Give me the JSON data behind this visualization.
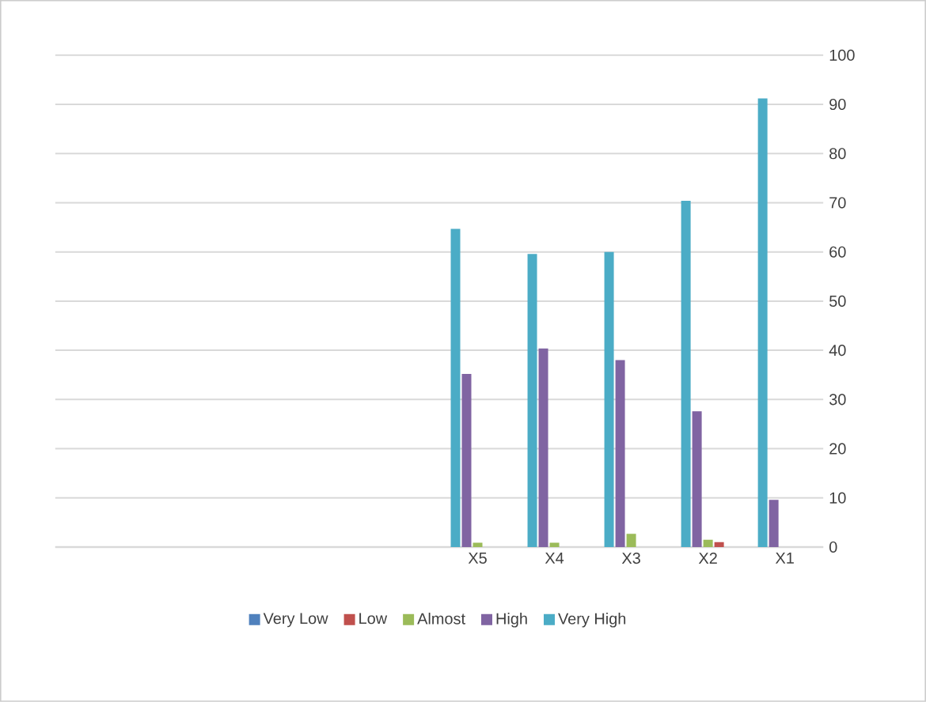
{
  "chart_data": {
    "type": "bar",
    "categories": [
      null,
      null,
      null,
      null,
      null,
      "X5",
      "X4",
      "X3",
      "X2",
      "X1"
    ],
    "series": [
      {
        "name": "Very Low",
        "color": "#4f81bd",
        "values": [
          null,
          null,
          null,
          null,
          null,
          0,
          0,
          0,
          0,
          0
        ]
      },
      {
        "name": "Low",
        "color": "#c0504d",
        "values": [
          null,
          null,
          null,
          null,
          null,
          0,
          0,
          0,
          1.0,
          0
        ]
      },
      {
        "name": "Almost",
        "color": "#9bbb59",
        "values": [
          null,
          null,
          null,
          null,
          null,
          0.9,
          0.9,
          2.7,
          1.5,
          0
        ]
      },
      {
        "name": "High",
        "color": "#8064a2",
        "values": [
          null,
          null,
          null,
          null,
          null,
          35.2,
          40.4,
          38.0,
          27.6,
          9.6
        ]
      },
      {
        "name": "Very High",
        "color": "#4bacc6",
        "values": [
          null,
          null,
          null,
          null,
          null,
          64.7,
          59.6,
          60.0,
          70.4,
          91.2
        ]
      }
    ],
    "ylim": [
      0,
      100
    ],
    "yticks": [
      0,
      10,
      20,
      30,
      40,
      50,
      60,
      70,
      80,
      90,
      100
    ],
    "grid": "y",
    "legend": "bottom"
  }
}
